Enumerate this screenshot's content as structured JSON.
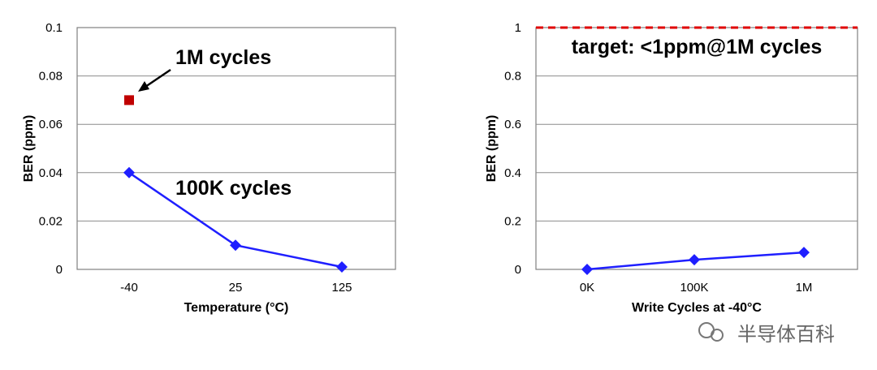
{
  "chart_data": [
    {
      "type": "line",
      "xlabel": "Temperature (°C)",
      "ylabel": "BER (ppm)",
      "categories": [
        "-40",
        "25",
        "125"
      ],
      "ylim": [
        0,
        0.1
      ],
      "yticks": [
        "0",
        "0.02",
        "0.04",
        "0.06",
        "0.08",
        "0.1"
      ],
      "grid": true,
      "series": [
        {
          "marker": "diamond",
          "color": "#1f1fff",
          "values": [
            0.04,
            0.01,
            0.001
          ]
        },
        {
          "marker": "square",
          "color": "#c00000",
          "values": [
            0.07,
            null,
            null
          ]
        }
      ],
      "annotations": [
        "1M cycles",
        "100K cycles"
      ]
    },
    {
      "type": "line",
      "xlabel": "Write Cycles at -40°C",
      "ylabel": "BER (ppm)",
      "categories": [
        "0K",
        "100K",
        "1M"
      ],
      "ylim": [
        0,
        1
      ],
      "yticks": [
        "0",
        "0.2",
        "0.4",
        "0.6",
        "0.8",
        "1"
      ],
      "grid": true,
      "series": [
        {
          "marker": "diamond",
          "color": "#1f1fff",
          "values": [
            0,
            0.04,
            0.07
          ]
        }
      ],
      "target_line": {
        "value": 1,
        "color": "#e00000",
        "style": "dashed"
      },
      "annotations": [
        "target: <1ppm@1M cycles"
      ]
    }
  ],
  "watermark": "半导体百科"
}
